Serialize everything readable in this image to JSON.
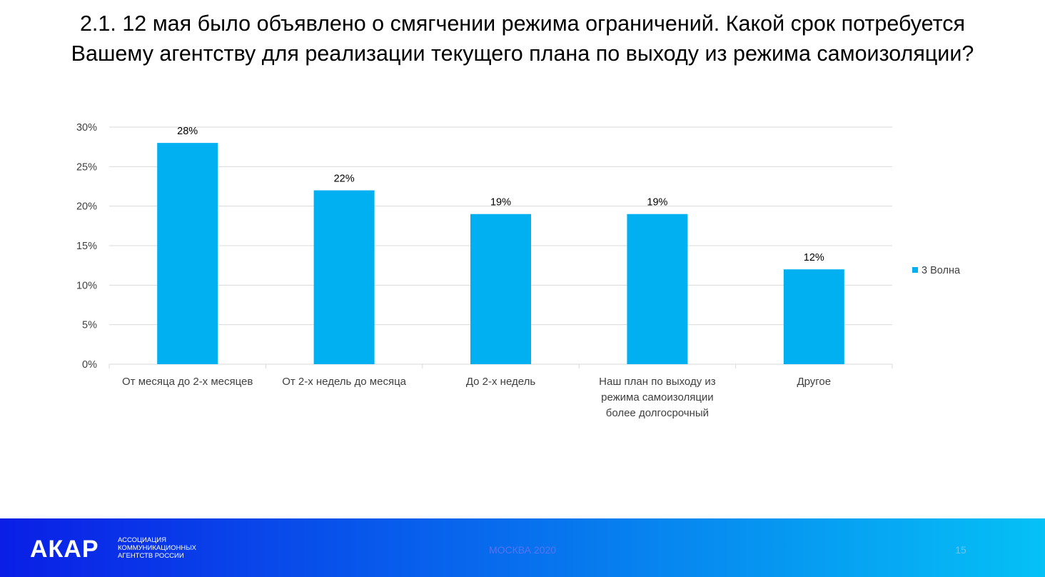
{
  "slide": {
    "title_lines": [
      "2.1. 12 мая было объявлено о смягчении режима ограничений. Какой срок потребуется",
      "Вашему агентству для реализации текущего плана по выходу из режима самоизоляции?"
    ]
  },
  "chart_data": {
    "type": "bar",
    "categories": [
      [
        "От месяца до 2-х месяцев"
      ],
      [
        "От 2-х недель до месяца"
      ],
      [
        "До 2-х недель"
      ],
      [
        "Наш план по выходу из",
        "режима самоизоляции",
        "более долгосрочный"
      ],
      [
        "Другое"
      ]
    ],
    "series": [
      {
        "name": "3 Волна",
        "values": [
          28,
          22,
          19,
          19,
          12
        ],
        "data_labels": [
          "28%",
          "22%",
          "19%",
          "19%",
          "12%"
        ],
        "color": "#00b0f0"
      }
    ],
    "ylim": [
      0,
      30
    ],
    "y_ticks": [
      "0%",
      "5%",
      "10%",
      "15%",
      "20%",
      "25%",
      "30%"
    ],
    "grid": true,
    "legend_position": "right",
    "gridline_color": "#d9d9d9",
    "text_color": "#404040"
  },
  "footer": {
    "logo_text": "АКАР",
    "logo_subtitle_lines": [
      "АССОЦИАЦИЯ",
      "КОММУНИКАЦИОННЫХ",
      "АГЕНТСТВ РОССИИ"
    ],
    "center_text": "МОСКВА 2020",
    "page_number": "15",
    "gradient_start": "#0a1ee6",
    "gradient_end": "#05c1f5"
  }
}
